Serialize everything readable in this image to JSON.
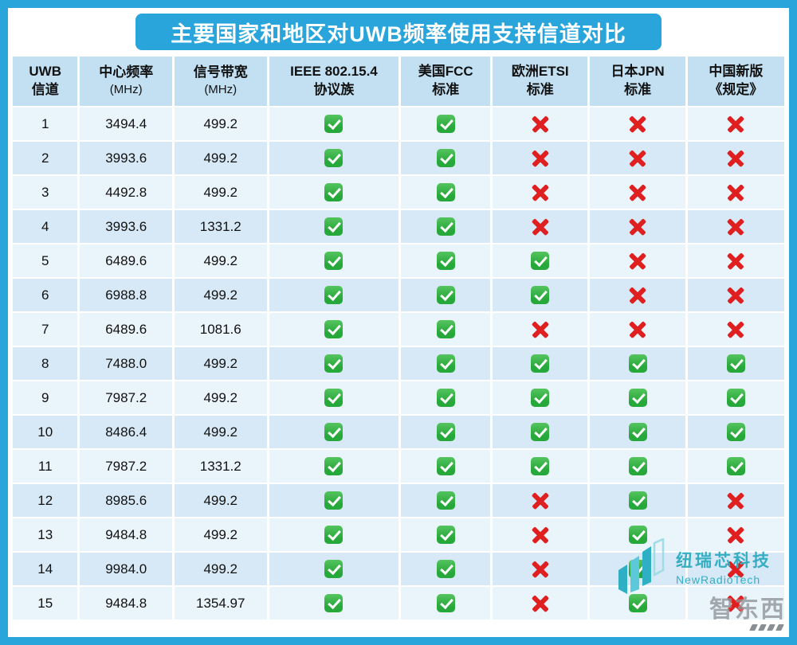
{
  "title": "主要国家和地区对UWB频率使用支持信道对比",
  "chart_data": {
    "type": "table",
    "title": "主要国家和地区对UWB频率使用支持信道对比",
    "columns": [
      {
        "line1": "UWB",
        "line2": "信道"
      },
      {
        "line1": "中心频率",
        "line2": "(MHz)"
      },
      {
        "line1": "信号带宽",
        "line2": "(MHz)"
      },
      {
        "line1": "IEEE 802.15.4",
        "line2": "协议族"
      },
      {
        "line1": "美国FCC",
        "line2": "标准"
      },
      {
        "line1": "欧洲ETSI",
        "line2": "标准"
      },
      {
        "line1": "日本JPN",
        "line2": "标准"
      },
      {
        "line1": "中国新版",
        "line2": "《规定》"
      }
    ],
    "support_legend": [
      "IEEE 802.15.4 协议族",
      "美国FCC 标准",
      "欧洲ETSI 标准",
      "日本JPN 标准",
      "中国新版《规定》"
    ],
    "rows": [
      {
        "channel": "1",
        "center_freq_mhz": "3494.4",
        "bandwidth_mhz": "499.2",
        "support": [
          true,
          true,
          false,
          false,
          false
        ]
      },
      {
        "channel": "2",
        "center_freq_mhz": "3993.6",
        "bandwidth_mhz": "499.2",
        "support": [
          true,
          true,
          false,
          false,
          false
        ]
      },
      {
        "channel": "3",
        "center_freq_mhz": "4492.8",
        "bandwidth_mhz": "499.2",
        "support": [
          true,
          true,
          false,
          false,
          false
        ]
      },
      {
        "channel": "4",
        "center_freq_mhz": "3993.6",
        "bandwidth_mhz": "1331.2",
        "support": [
          true,
          true,
          false,
          false,
          false
        ]
      },
      {
        "channel": "5",
        "center_freq_mhz": "6489.6",
        "bandwidth_mhz": "499.2",
        "support": [
          true,
          true,
          true,
          false,
          false
        ]
      },
      {
        "channel": "6",
        "center_freq_mhz": "6988.8",
        "bandwidth_mhz": "499.2",
        "support": [
          true,
          true,
          true,
          false,
          false
        ]
      },
      {
        "channel": "7",
        "center_freq_mhz": "6489.6",
        "bandwidth_mhz": "1081.6",
        "support": [
          true,
          true,
          false,
          false,
          false
        ]
      },
      {
        "channel": "8",
        "center_freq_mhz": "7488.0",
        "bandwidth_mhz": "499.2",
        "support": [
          true,
          true,
          true,
          true,
          true
        ]
      },
      {
        "channel": "9",
        "center_freq_mhz": "7987.2",
        "bandwidth_mhz": "499.2",
        "support": [
          true,
          true,
          true,
          true,
          true
        ]
      },
      {
        "channel": "10",
        "center_freq_mhz": "8486.4",
        "bandwidth_mhz": "499.2",
        "support": [
          true,
          true,
          true,
          true,
          true
        ]
      },
      {
        "channel": "11",
        "center_freq_mhz": "7987.2",
        "bandwidth_mhz": "1331.2",
        "support": [
          true,
          true,
          true,
          true,
          true
        ]
      },
      {
        "channel": "12",
        "center_freq_mhz": "8985.6",
        "bandwidth_mhz": "499.2",
        "support": [
          true,
          true,
          false,
          true,
          false
        ]
      },
      {
        "channel": "13",
        "center_freq_mhz": "9484.8",
        "bandwidth_mhz": "499.2",
        "support": [
          true,
          true,
          false,
          true,
          false
        ]
      },
      {
        "channel": "14",
        "center_freq_mhz": "9984.0",
        "bandwidth_mhz": "499.2",
        "support": [
          true,
          true,
          false,
          true,
          false
        ]
      },
      {
        "channel": "15",
        "center_freq_mhz": "9484.8",
        "bandwidth_mhz": "1354.97",
        "support": [
          true,
          true,
          false,
          true,
          false
        ]
      }
    ]
  },
  "branding": {
    "logo_name": "纽瑞芯科技",
    "logo_name_en": "NewRadioTech",
    "watermark": "智东西"
  },
  "colors": {
    "frame": "#29a5dc",
    "header_bg": "#c2e0f2",
    "row_odd": "#eaf4fb",
    "row_even": "#d7e9f6",
    "check_green": "#27a83a",
    "cross_red": "#e02020",
    "logo_teal": "#35aec3"
  }
}
